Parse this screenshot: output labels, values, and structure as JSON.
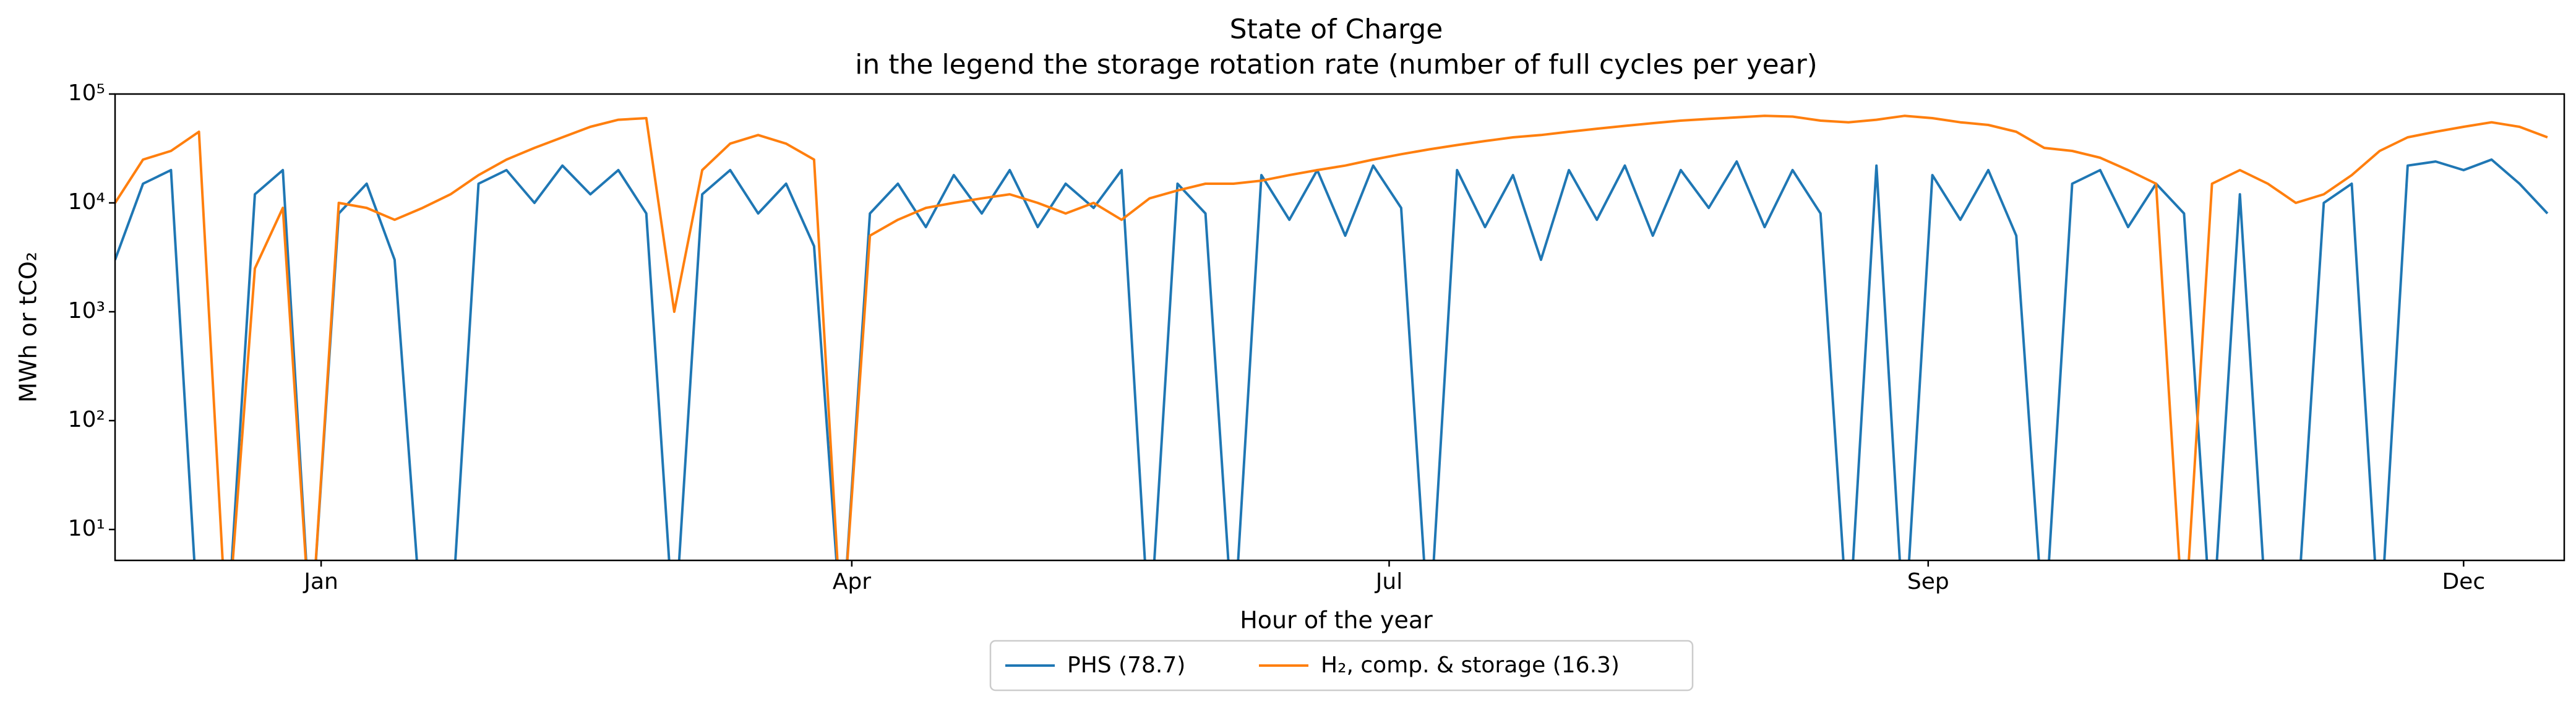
{
  "chart_data": {
    "type": "line",
    "title": "State of Charge",
    "subtitle": "in the legend the storage rotation rate (number of full cycles per year)",
    "x_label": "Hour of the year",
    "y_label": "MWh or tCO₂",
    "log_y": true,
    "legend": "lower center outside",
    "x": [
      0,
      100,
      200,
      300,
      400,
      500,
      600,
      700,
      800,
      900,
      1000,
      1100,
      1200,
      1300,
      1400,
      1500,
      1600,
      1700,
      1800,
      1900,
      2000,
      2100,
      2200,
      2300,
      2400,
      2500,
      2600,
      2700,
      2800,
      2900,
      3000,
      3100,
      3200,
      3300,
      3400,
      3500,
      3600,
      3700,
      3800,
      3900,
      4000,
      4100,
      4200,
      4300,
      4400,
      4500,
      4600,
      4700,
      4800,
      4900,
      5000,
      5100,
      5200,
      5300,
      5400,
      5500,
      5600,
      5700,
      5800,
      5900,
      6000,
      6100,
      6200,
      6300,
      6400,
      6500,
      6600,
      6700,
      6800,
      6900,
      7000,
      7100,
      7200,
      7300,
      7400,
      7500,
      7600,
      7700,
      7800,
      7900,
      8000,
      8100,
      8200,
      8300,
      8400,
      8500,
      8600,
      8700
    ],
    "series": [
      {
        "name": "PHS (78.7)",
        "color": "#1f77b4",
        "values": [
          3000,
          15000,
          20000,
          1,
          1,
          12000,
          20000,
          1,
          8000,
          15000,
          3000,
          1,
          1,
          15000,
          20000,
          10000,
          22000,
          12000,
          20000,
          8000,
          1,
          12000,
          20000,
          8000,
          15000,
          4000,
          1,
          8000,
          15000,
          6000,
          18000,
          8000,
          20000,
          6000,
          15000,
          9000,
          20000,
          1,
          15000,
          8000,
          1,
          18000,
          7000,
          20000,
          5000,
          22000,
          9000,
          1,
          20000,
          6000,
          18000,
          3000,
          20000,
          7000,
          22000,
          5000,
          20000,
          9000,
          24000,
          6000,
          20000,
          8000,
          1,
          22000,
          1,
          18000,
          7000,
          20000,
          5000,
          1,
          15000,
          20000,
          6000,
          15000,
          8000,
          1,
          12000,
          1,
          1,
          10000,
          15000,
          1,
          22000,
          24000,
          20000,
          25000,
          15000,
          8000
        ]
      },
      {
        "name": "H₂, comp. & storage (16.3)",
        "color": "#ff7f0e",
        "values": [
          10000,
          25000,
          30000,
          45000,
          1,
          2500,
          9000,
          1,
          10000,
          9000,
          7000,
          9000,
          12000,
          18000,
          25000,
          32000,
          40000,
          50000,
          58000,
          60000,
          1000,
          20000,
          35000,
          42000,
          35000,
          25000,
          1,
          5000,
          7000,
          9000,
          10000,
          11000,
          12000,
          10000,
          8000,
          10000,
          7000,
          11000,
          13000,
          15000,
          15000,
          16000,
          18000,
          20000,
          22000,
          25000,
          28000,
          31000,
          34000,
          37000,
          40000,
          42000,
          45000,
          48000,
          51000,
          54000,
          57000,
          59000,
          61000,
          63000,
          62000,
          57000,
          55000,
          58000,
          63000,
          60000,
          55000,
          52000,
          45000,
          32000,
          30000,
          26000,
          20000,
          15000,
          1,
          15000,
          20000,
          15000,
          10000,
          12000,
          18000,
          30000,
          40000,
          45000,
          50000,
          55000,
          50000,
          40000
        ]
      }
    ],
    "xlim": [
      0,
      8760
    ],
    "xticks": [
      {
        "value": 737,
        "label": "Jan"
      },
      {
        "value": 2635,
        "label": "Apr"
      },
      {
        "value": 4557,
        "label": "Jul"
      },
      {
        "value": 6485,
        "label": "Sep"
      },
      {
        "value": 8400,
        "label": "Dec"
      }
    ],
    "ylim": [
      5.2,
      100000
    ],
    "yticks": [
      {
        "value": 10,
        "label": "10¹"
      },
      {
        "value": 100,
        "label": "10²"
      },
      {
        "value": 1000,
        "label": "10³"
      },
      {
        "value": 10000,
        "label": "10⁴"
      },
      {
        "value": 100000,
        "label": "10⁵"
      }
    ]
  }
}
